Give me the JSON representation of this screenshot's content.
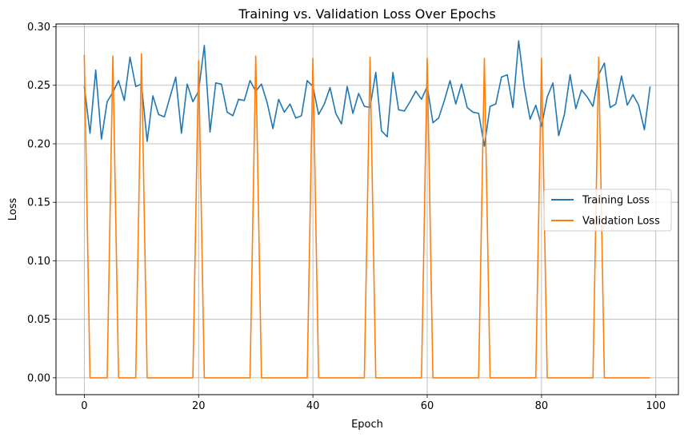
{
  "chart_data": {
    "type": "line",
    "title": "Training vs. Validation Loss Over Epochs",
    "xlabel": "Epoch",
    "ylabel": "Loss",
    "xlim": [
      -4.95,
      103.95
    ],
    "ylim": [
      -0.0144,
      0.3024
    ],
    "xticks": [
      0,
      20,
      40,
      60,
      80,
      100
    ],
    "xtick_labels": [
      "0",
      "20",
      "40",
      "60",
      "80",
      "100"
    ],
    "yticks": [
      0.0,
      0.05,
      0.1,
      0.15,
      0.2,
      0.25,
      0.3
    ],
    "ytick_labels": [
      "0.00",
      "0.05",
      "0.10",
      "0.15",
      "0.20",
      "0.25",
      "0.30"
    ],
    "grid": true,
    "legend_position": "center-right",
    "x": [
      0,
      1,
      2,
      3,
      4,
      5,
      6,
      7,
      8,
      9,
      10,
      11,
      12,
      13,
      14,
      15,
      16,
      17,
      18,
      19,
      20,
      21,
      22,
      23,
      24,
      25,
      26,
      27,
      28,
      29,
      30,
      31,
      32,
      33,
      34,
      35,
      36,
      37,
      38,
      39,
      40,
      41,
      42,
      43,
      44,
      45,
      46,
      47,
      48,
      49,
      50,
      51,
      52,
      53,
      54,
      55,
      56,
      57,
      58,
      59,
      60,
      61,
      62,
      63,
      64,
      65,
      66,
      67,
      68,
      69,
      70,
      71,
      72,
      73,
      74,
      75,
      76,
      77,
      78,
      79,
      80,
      81,
      82,
      83,
      84,
      85,
      86,
      87,
      88,
      89,
      90,
      91,
      92,
      93,
      94,
      95,
      96,
      97,
      98,
      99
    ],
    "series": [
      {
        "name": "Training Loss",
        "color": "#1f77b4",
        "values": [
          0.249,
          0.209,
          0.263,
          0.204,
          0.236,
          0.244,
          0.254,
          0.237,
          0.274,
          0.249,
          0.251,
          0.202,
          0.241,
          0.225,
          0.223,
          0.24,
          0.257,
          0.209,
          0.251,
          0.236,
          0.245,
          0.284,
          0.21,
          0.252,
          0.251,
          0.227,
          0.224,
          0.238,
          0.237,
          0.254,
          0.245,
          0.251,
          0.235,
          0.213,
          0.238,
          0.227,
          0.234,
          0.222,
          0.224,
          0.254,
          0.249,
          0.225,
          0.234,
          0.248,
          0.226,
          0.217,
          0.249,
          0.226,
          0.243,
          0.232,
          0.231,
          0.261,
          0.211,
          0.206,
          0.261,
          0.229,
          0.228,
          0.236,
          0.245,
          0.238,
          0.249,
          0.218,
          0.222,
          0.237,
          0.254,
          0.234,
          0.251,
          0.231,
          0.227,
          0.226,
          0.198,
          0.232,
          0.234,
          0.257,
          0.259,
          0.231,
          0.288,
          0.248,
          0.221,
          0.233,
          0.215,
          0.24,
          0.252,
          0.207,
          0.225,
          0.259,
          0.23,
          0.246,
          0.24,
          0.232,
          0.259,
          0.269,
          0.231,
          0.234,
          0.258,
          0.233,
          0.242,
          0.233,
          0.212,
          0.249
        ]
      },
      {
        "name": "Validation Loss",
        "color": "#ff7f0e",
        "values": [
          0.276,
          0,
          0,
          0,
          0,
          0.275,
          0,
          0,
          0,
          0,
          0.277,
          0,
          0,
          0,
          0,
          0,
          0,
          0,
          0,
          0,
          0.271,
          0,
          0,
          0,
          0,
          0,
          0,
          0,
          0,
          0,
          0.275,
          0,
          0,
          0,
          0,
          0,
          0,
          0,
          0,
          0,
          0.273,
          0,
          0,
          0,
          0,
          0,
          0,
          0,
          0,
          0,
          0.274,
          0,
          0,
          0,
          0,
          0,
          0,
          0,
          0,
          0,
          0.273,
          0,
          0,
          0,
          0,
          0,
          0,
          0,
          0,
          0,
          0.273,
          0,
          0,
          0,
          0,
          0,
          0,
          0,
          0,
          0,
          0.273,
          0,
          0,
          0,
          0,
          0,
          0,
          0,
          0,
          0,
          0.274,
          0,
          0,
          0,
          0,
          0,
          0,
          0,
          0,
          0
        ]
      }
    ]
  }
}
